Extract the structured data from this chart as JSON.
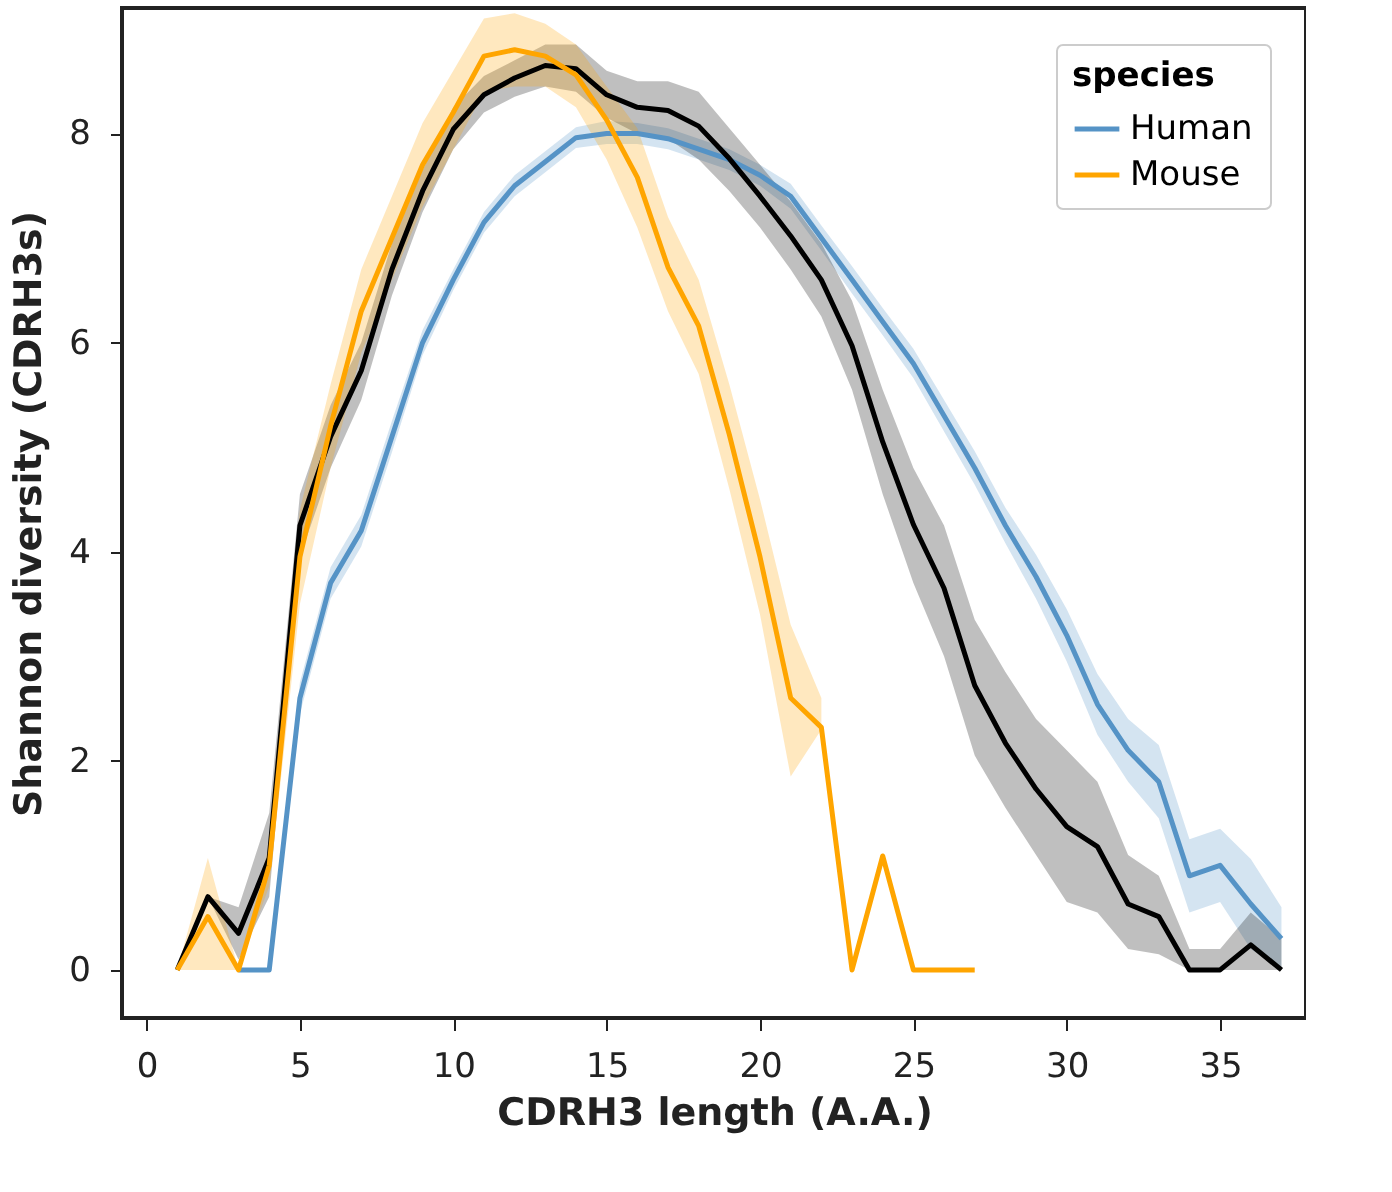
{
  "chart_data": {
    "type": "line",
    "xlabel": "CDRH3 length (A.A.)",
    "ylabel": "Shannon diversity (CDRH3s)",
    "legend_title": "species",
    "legend": "top right",
    "grid": false,
    "marker": "none",
    "line_style": "solid",
    "xlim": [
      -0.8,
      37.8
    ],
    "xticks": [
      0,
      5,
      10,
      15,
      20,
      25,
      30,
      35
    ],
    "ylim": [
      -0.46,
      9.2
    ],
    "yticks": [
      0,
      2,
      4,
      6,
      8
    ],
    "series": [
      {
        "name": "Human",
        "color": "#5593c6",
        "x": [
          3,
          4,
          5,
          6,
          7,
          8,
          9,
          10,
          11,
          12,
          13,
          14,
          15,
          16,
          17,
          18,
          19,
          20,
          21,
          22,
          23,
          24,
          25,
          26,
          27,
          28,
          29,
          30,
          31,
          32,
          33,
          34,
          35,
          36,
          37
        ],
        "values": [
          0,
          0,
          2.6,
          3.7,
          4.2,
          5.1,
          6.0,
          6.6,
          7.15,
          7.5,
          7.73,
          7.96,
          8.0,
          8.0,
          7.95,
          7.85,
          7.75,
          7.6,
          7.4,
          7.0,
          6.6,
          6.2,
          5.8,
          5.3,
          4.8,
          4.25,
          3.76,
          3.2,
          2.54,
          2.1,
          1.8,
          0.9,
          1.0,
          0.63,
          0.3
        ],
        "lower": [
          0,
          0,
          2.45,
          3.55,
          4.05,
          4.95,
          5.88,
          6.5,
          7.05,
          7.4,
          7.63,
          7.86,
          7.9,
          7.9,
          7.85,
          7.75,
          7.65,
          7.5,
          7.28,
          6.88,
          6.47,
          6.07,
          5.66,
          5.15,
          4.64,
          4.08,
          3.55,
          2.95,
          2.25,
          1.8,
          1.45,
          0.55,
          0.65,
          0.2,
          0.0
        ],
        "upper": [
          0,
          0,
          2.75,
          3.85,
          4.35,
          5.25,
          6.12,
          6.7,
          7.25,
          7.6,
          7.83,
          8.06,
          8.12,
          8.1,
          8.05,
          7.95,
          7.85,
          7.7,
          7.52,
          7.12,
          6.73,
          6.33,
          5.94,
          5.45,
          4.96,
          4.42,
          3.97,
          3.45,
          2.83,
          2.4,
          2.15,
          1.25,
          1.35,
          1.06,
          0.6
        ]
      },
      {
        "color": "#000000",
        "x": [
          1,
          2,
          3,
          4,
          5,
          6,
          7,
          8,
          9,
          10,
          11,
          12,
          13,
          14,
          15,
          16,
          17,
          18,
          19,
          20,
          21,
          22,
          23,
          24,
          25,
          26,
          27,
          28,
          29,
          30,
          31,
          32,
          33,
          34,
          35,
          36,
          37
        ],
        "values": [
          0,
          0.7,
          0.35,
          1.07,
          4.25,
          5.1,
          5.73,
          6.7,
          7.45,
          8.04,
          8.37,
          8.53,
          8.65,
          8.62,
          8.37,
          8.25,
          8.22,
          8.07,
          7.76,
          7.4,
          7.02,
          6.6,
          5.97,
          5.05,
          4.26,
          3.65,
          2.72,
          2.17,
          1.73,
          1.37,
          1.18,
          0.63,
          0.51,
          0,
          0,
          0.24,
          0
        ],
        "lower": [
          0,
          0.7,
          0.1,
          0.7,
          3.95,
          4.8,
          5.45,
          6.45,
          7.25,
          7.85,
          8.2,
          8.35,
          8.45,
          8.4,
          8.15,
          8.0,
          7.95,
          7.75,
          7.45,
          7.1,
          6.7,
          6.25,
          5.55,
          4.55,
          3.7,
          3.0,
          2.05,
          1.55,
          1.1,
          0.65,
          0.55,
          0.2,
          0.15,
          0,
          0,
          0,
          0
        ],
        "upper": [
          0,
          0.7,
          0.6,
          1.5,
          4.55,
          5.4,
          6.0,
          6.95,
          7.65,
          8.25,
          8.55,
          8.7,
          8.85,
          8.85,
          8.6,
          8.5,
          8.5,
          8.4,
          8.05,
          7.7,
          7.35,
          6.95,
          6.4,
          5.55,
          4.8,
          4.25,
          3.35,
          2.85,
          2.4,
          2.1,
          1.8,
          1.1,
          0.9,
          0.2,
          0.2,
          0.55,
          0.3
        ]
      },
      {
        "name": "Mouse",
        "color": "#ffa500",
        "x": [
          1,
          2,
          3,
          4,
          5,
          6,
          7,
          8,
          9,
          10,
          11,
          12,
          13,
          14,
          15,
          16,
          17,
          18,
          19,
          20,
          21,
          22,
          23,
          24,
          25,
          26,
          27
        ],
        "values": [
          0,
          0.51,
          0,
          1.0,
          3.95,
          5.2,
          6.3,
          7.0,
          7.7,
          8.2,
          8.74,
          8.8,
          8.74,
          8.56,
          8.13,
          7.58,
          6.72,
          6.16,
          5.12,
          3.95,
          2.6,
          2.32,
          0,
          1.09,
          0,
          0,
          0
        ],
        "lower": [
          0,
          0,
          0,
          0.8,
          3.5,
          4.8,
          5.9,
          6.6,
          7.3,
          7.85,
          8.4,
          8.45,
          8.45,
          8.25,
          7.75,
          7.1,
          6.3,
          5.7,
          4.6,
          3.4,
          1.85,
          2.3,
          null,
          null,
          null,
          null,
          null
        ],
        "upper": [
          0,
          1.07,
          0,
          1.2,
          4.4,
          5.6,
          6.7,
          7.4,
          8.1,
          8.6,
          9.1,
          9.15,
          9.05,
          8.85,
          8.45,
          8.05,
          7.2,
          6.6,
          5.6,
          4.5,
          3.3,
          2.6,
          null,
          null,
          null,
          null,
          null
        ]
      }
    ]
  }
}
